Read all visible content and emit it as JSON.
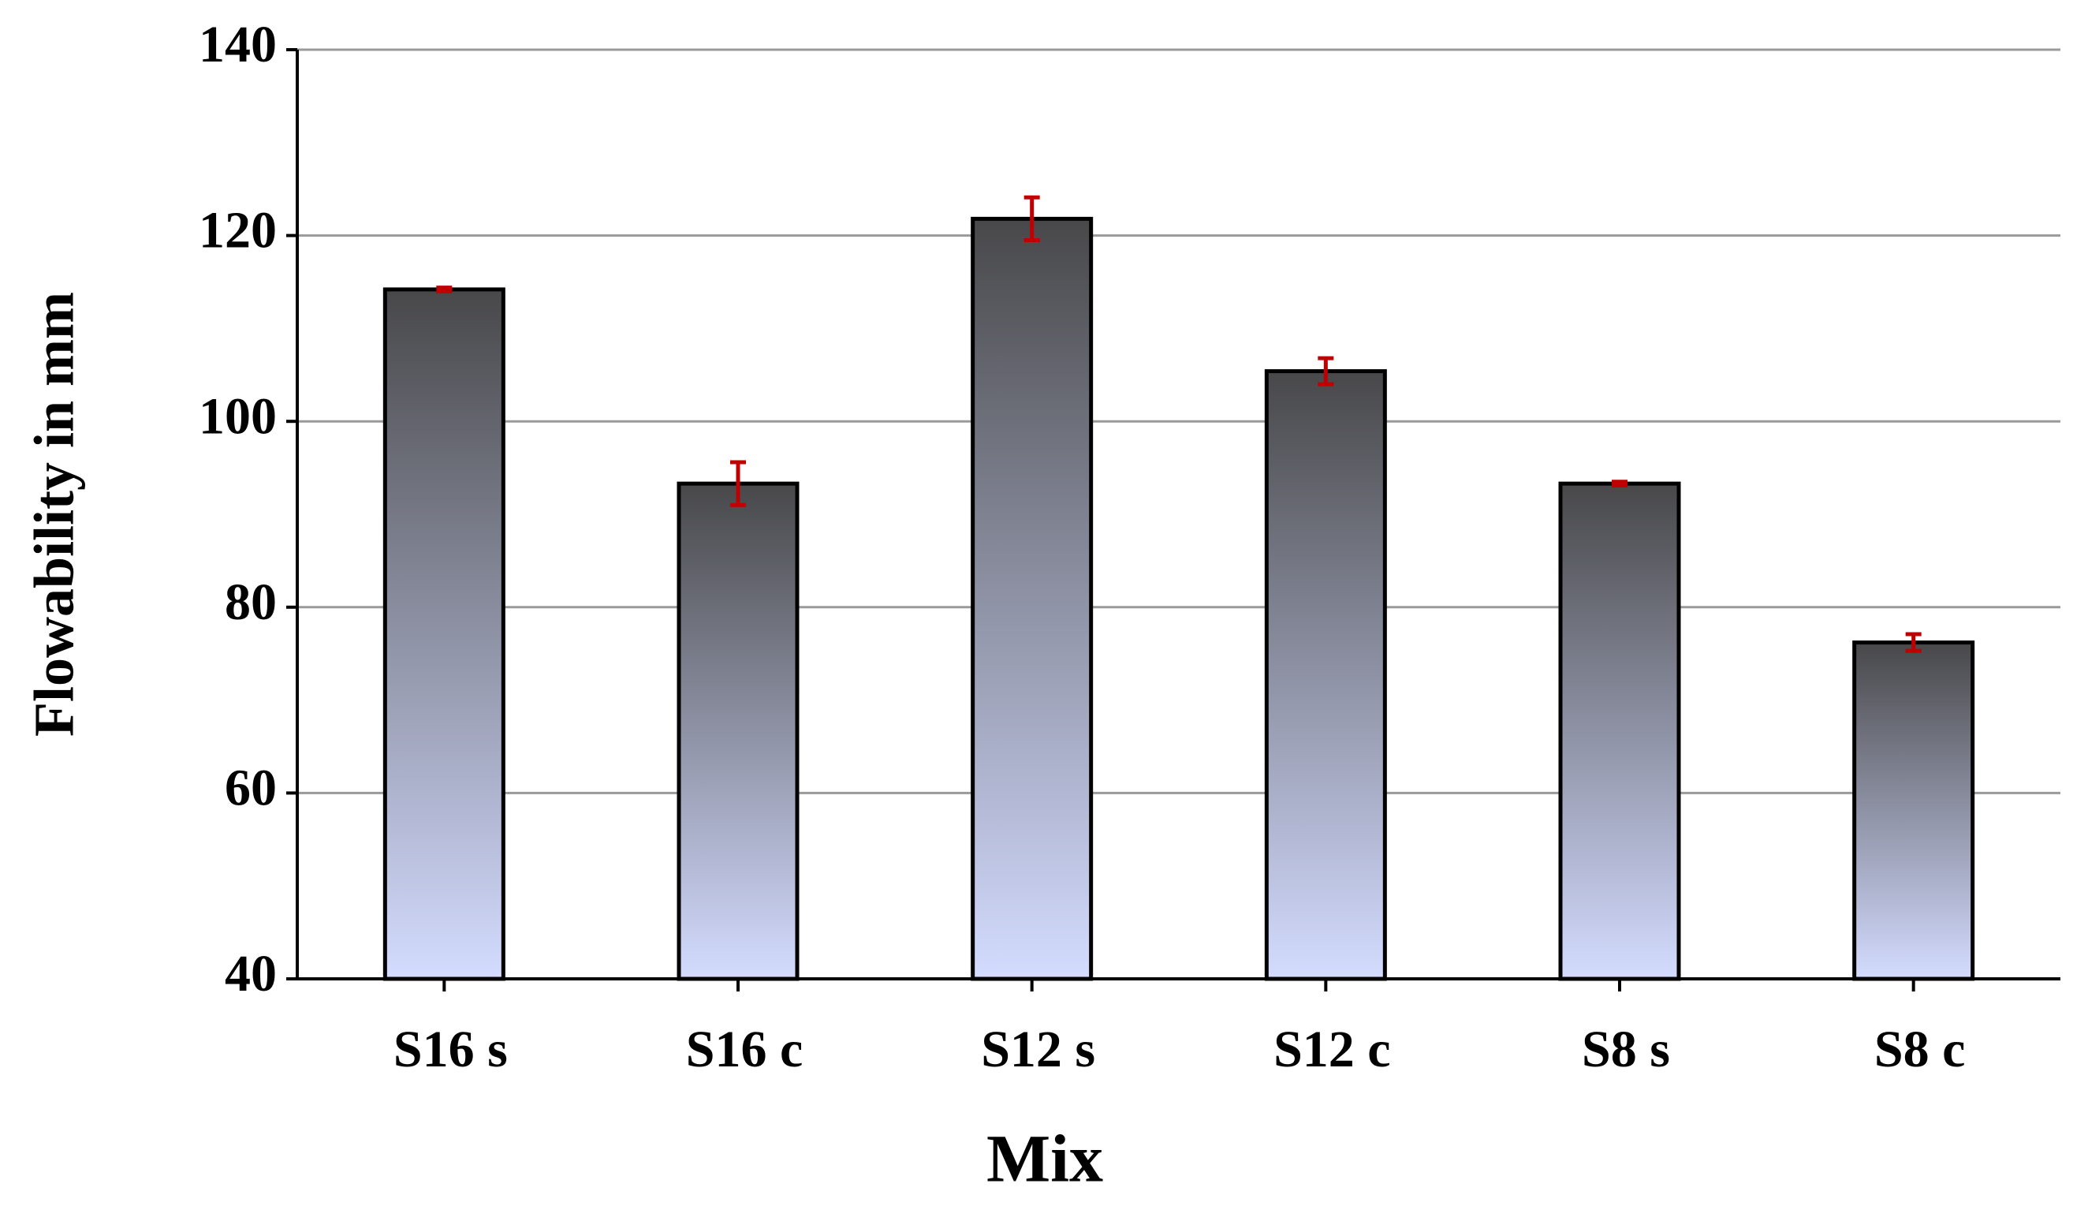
{
  "chart_data": {
    "type": "bar",
    "x_label": "Mix",
    "y_label": "Flowability in mm",
    "categories": [
      "S16 s",
      "S16 c",
      "S12 s",
      "S12 c",
      "S8 s",
      "S8 c"
    ],
    "values": [
      114.2,
      93.3,
      121.8,
      105.4,
      93.3,
      76.2
    ],
    "errors": [
      0.2,
      2.3,
      2.3,
      1.4,
      0.2,
      0.9
    ],
    "color_top": "#48484a",
    "color_bottom": "#d4dcff",
    "error_color": "#c00000",
    "ylim": [
      40,
      140
    ],
    "yticks": [
      40,
      60,
      80,
      100,
      120,
      140
    ],
    "grid": true
  }
}
